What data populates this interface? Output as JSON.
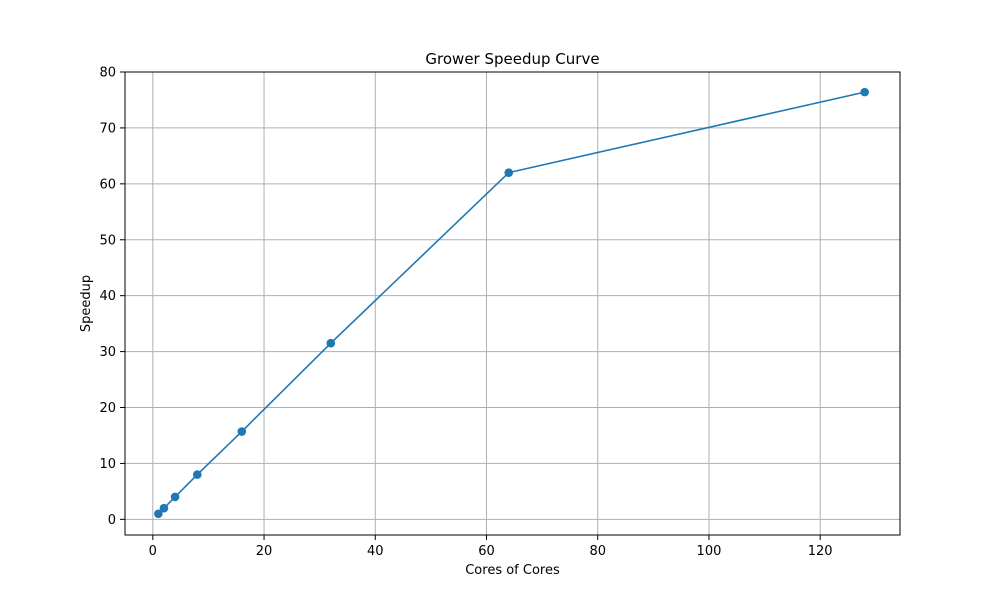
{
  "chart_data": {
    "type": "line",
    "title": "Grower Speedup Curve",
    "xlabel": "Cores of Cores",
    "ylabel": "Speedup",
    "xlim": [
      -5,
      134.35
    ],
    "ylim": [
      -2.8,
      80
    ],
    "xticks": [
      0,
      20,
      40,
      60,
      80,
      100,
      120
    ],
    "yticks": [
      0,
      10,
      20,
      30,
      40,
      50,
      60,
      70,
      80
    ],
    "grid": true,
    "series": [
      {
        "color": "#1f77b4",
        "marker": "circle",
        "x": [
          1,
          2,
          4,
          8,
          16,
          32,
          64,
          128
        ],
        "y": [
          1,
          2,
          4,
          8,
          15.7,
          31.5,
          62,
          76.4
        ]
      }
    ]
  }
}
